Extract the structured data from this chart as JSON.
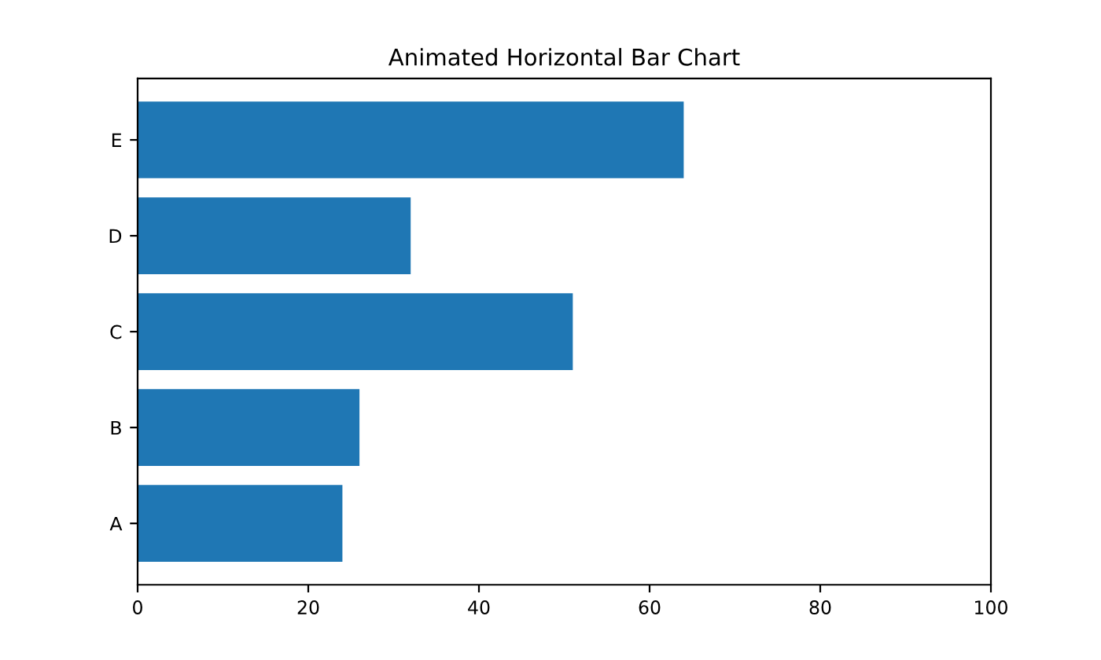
{
  "chart_data": {
    "type": "bar",
    "orientation": "horizontal",
    "title": "Animated Horizontal Bar Chart",
    "categories": [
      "E",
      "D",
      "C",
      "B",
      "A"
    ],
    "values": [
      64,
      32,
      51,
      26,
      24
    ],
    "color": "#1f77b4",
    "xlim": [
      0,
      100
    ],
    "xticks": [
      0,
      20,
      40,
      60,
      80,
      100
    ],
    "grid": false,
    "legend": false
  }
}
